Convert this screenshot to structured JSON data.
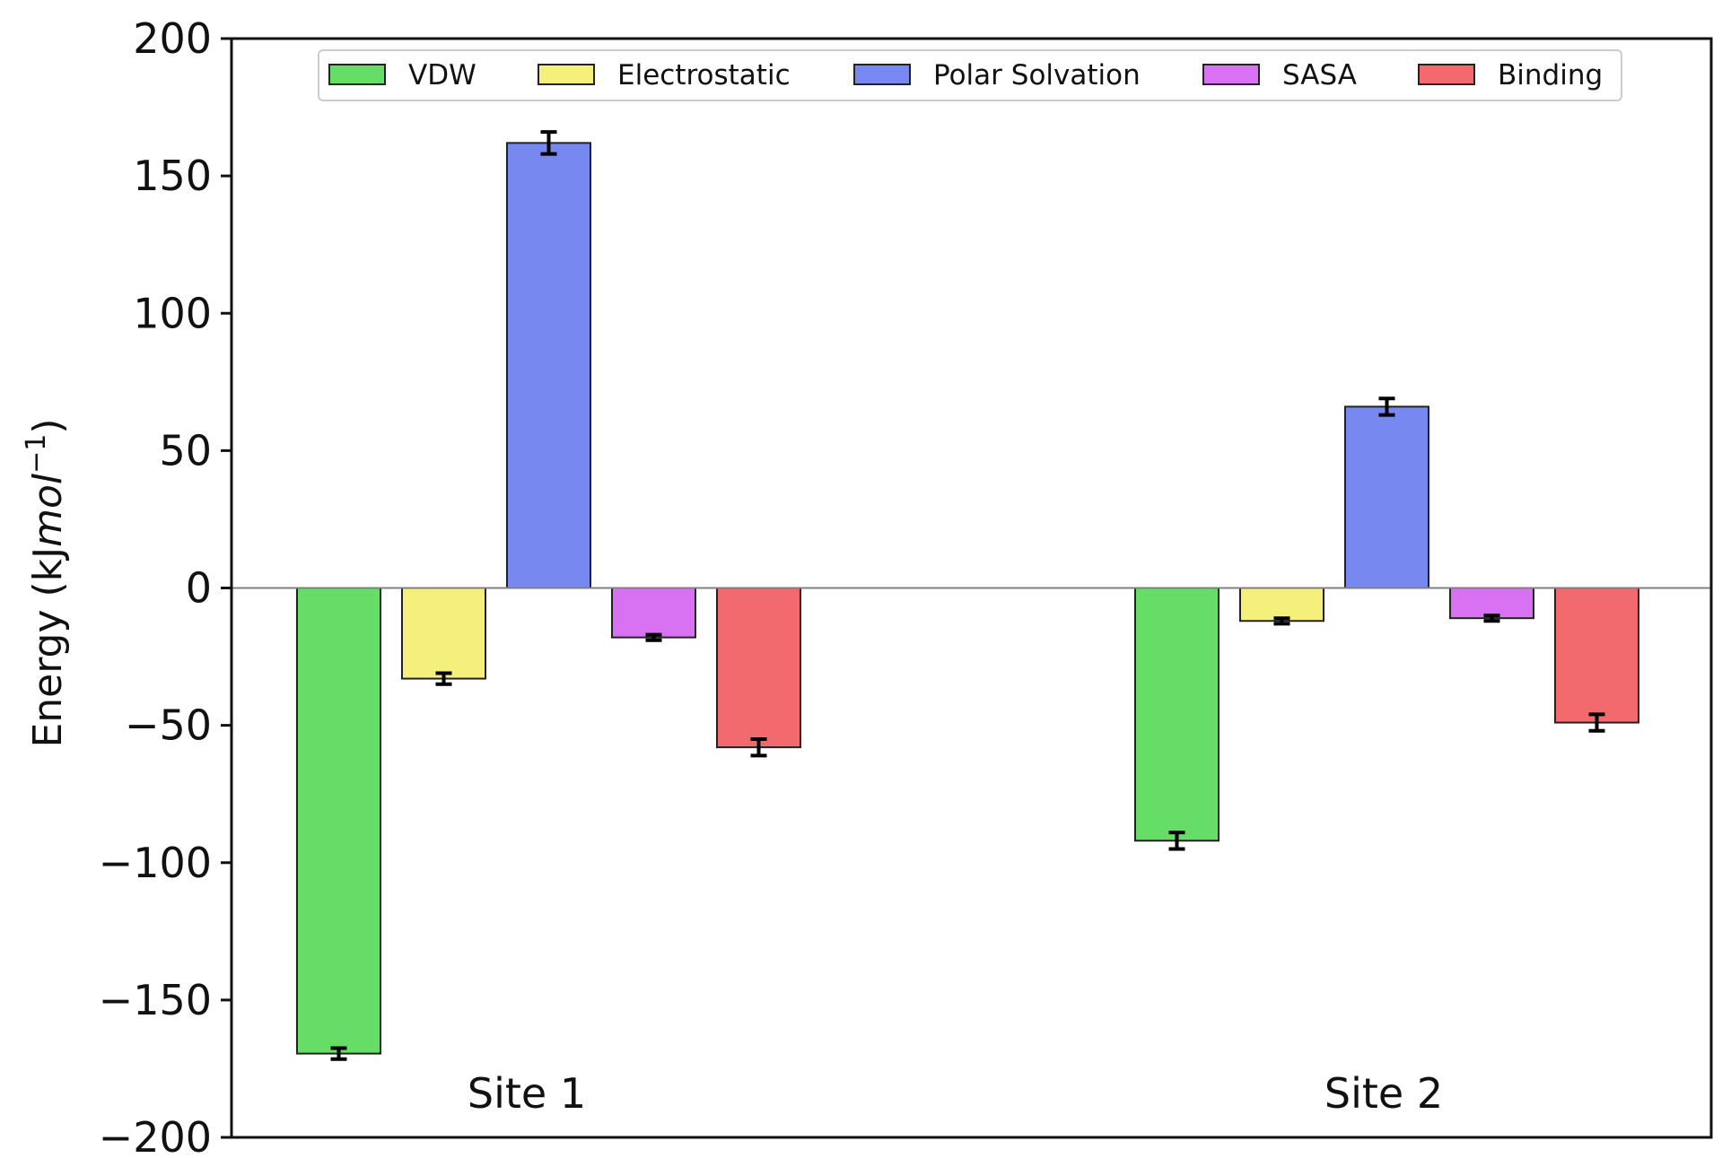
{
  "chart_data": {
    "type": "bar",
    "title": "",
    "xlabel": "",
    "ylabel": "Energy (kJ",
    "ylabel_math": "mol",
    "ylabel_exp": "−1",
    "ylabel_close": ")",
    "ylim": [
      -200,
      200
    ],
    "yticks": [
      200,
      150,
      100,
      50,
      0,
      -50,
      -100,
      -150,
      -200
    ],
    "ytick_labels": [
      "200",
      "150",
      "100",
      "50",
      "0",
      "−50",
      "−100",
      "−150",
      "−200"
    ],
    "categories": [
      "Site 1",
      "Site 2"
    ],
    "legend_position": "top",
    "series": [
      {
        "name": "VDW",
        "color": "#66dd66",
        "values": [
          -169.5,
          -92
        ],
        "errors": [
          2,
          3
        ]
      },
      {
        "name": "Electrostatic",
        "color": "#f5ef7c",
        "values": [
          -33,
          -12
        ],
        "errors": [
          2,
          1
        ]
      },
      {
        "name": "Polar Solvation",
        "color": "#7788f0",
        "values": [
          162,
          66
        ],
        "errors": [
          4,
          3
        ]
      },
      {
        "name": "SASA",
        "color": "#d871f2",
        "values": [
          -18,
          -11
        ],
        "errors": [
          1,
          1
        ]
      },
      {
        "name": "Binding",
        "color": "#f2696e",
        "values": [
          -58,
          -49
        ],
        "errors": [
          3,
          3
        ]
      }
    ]
  }
}
